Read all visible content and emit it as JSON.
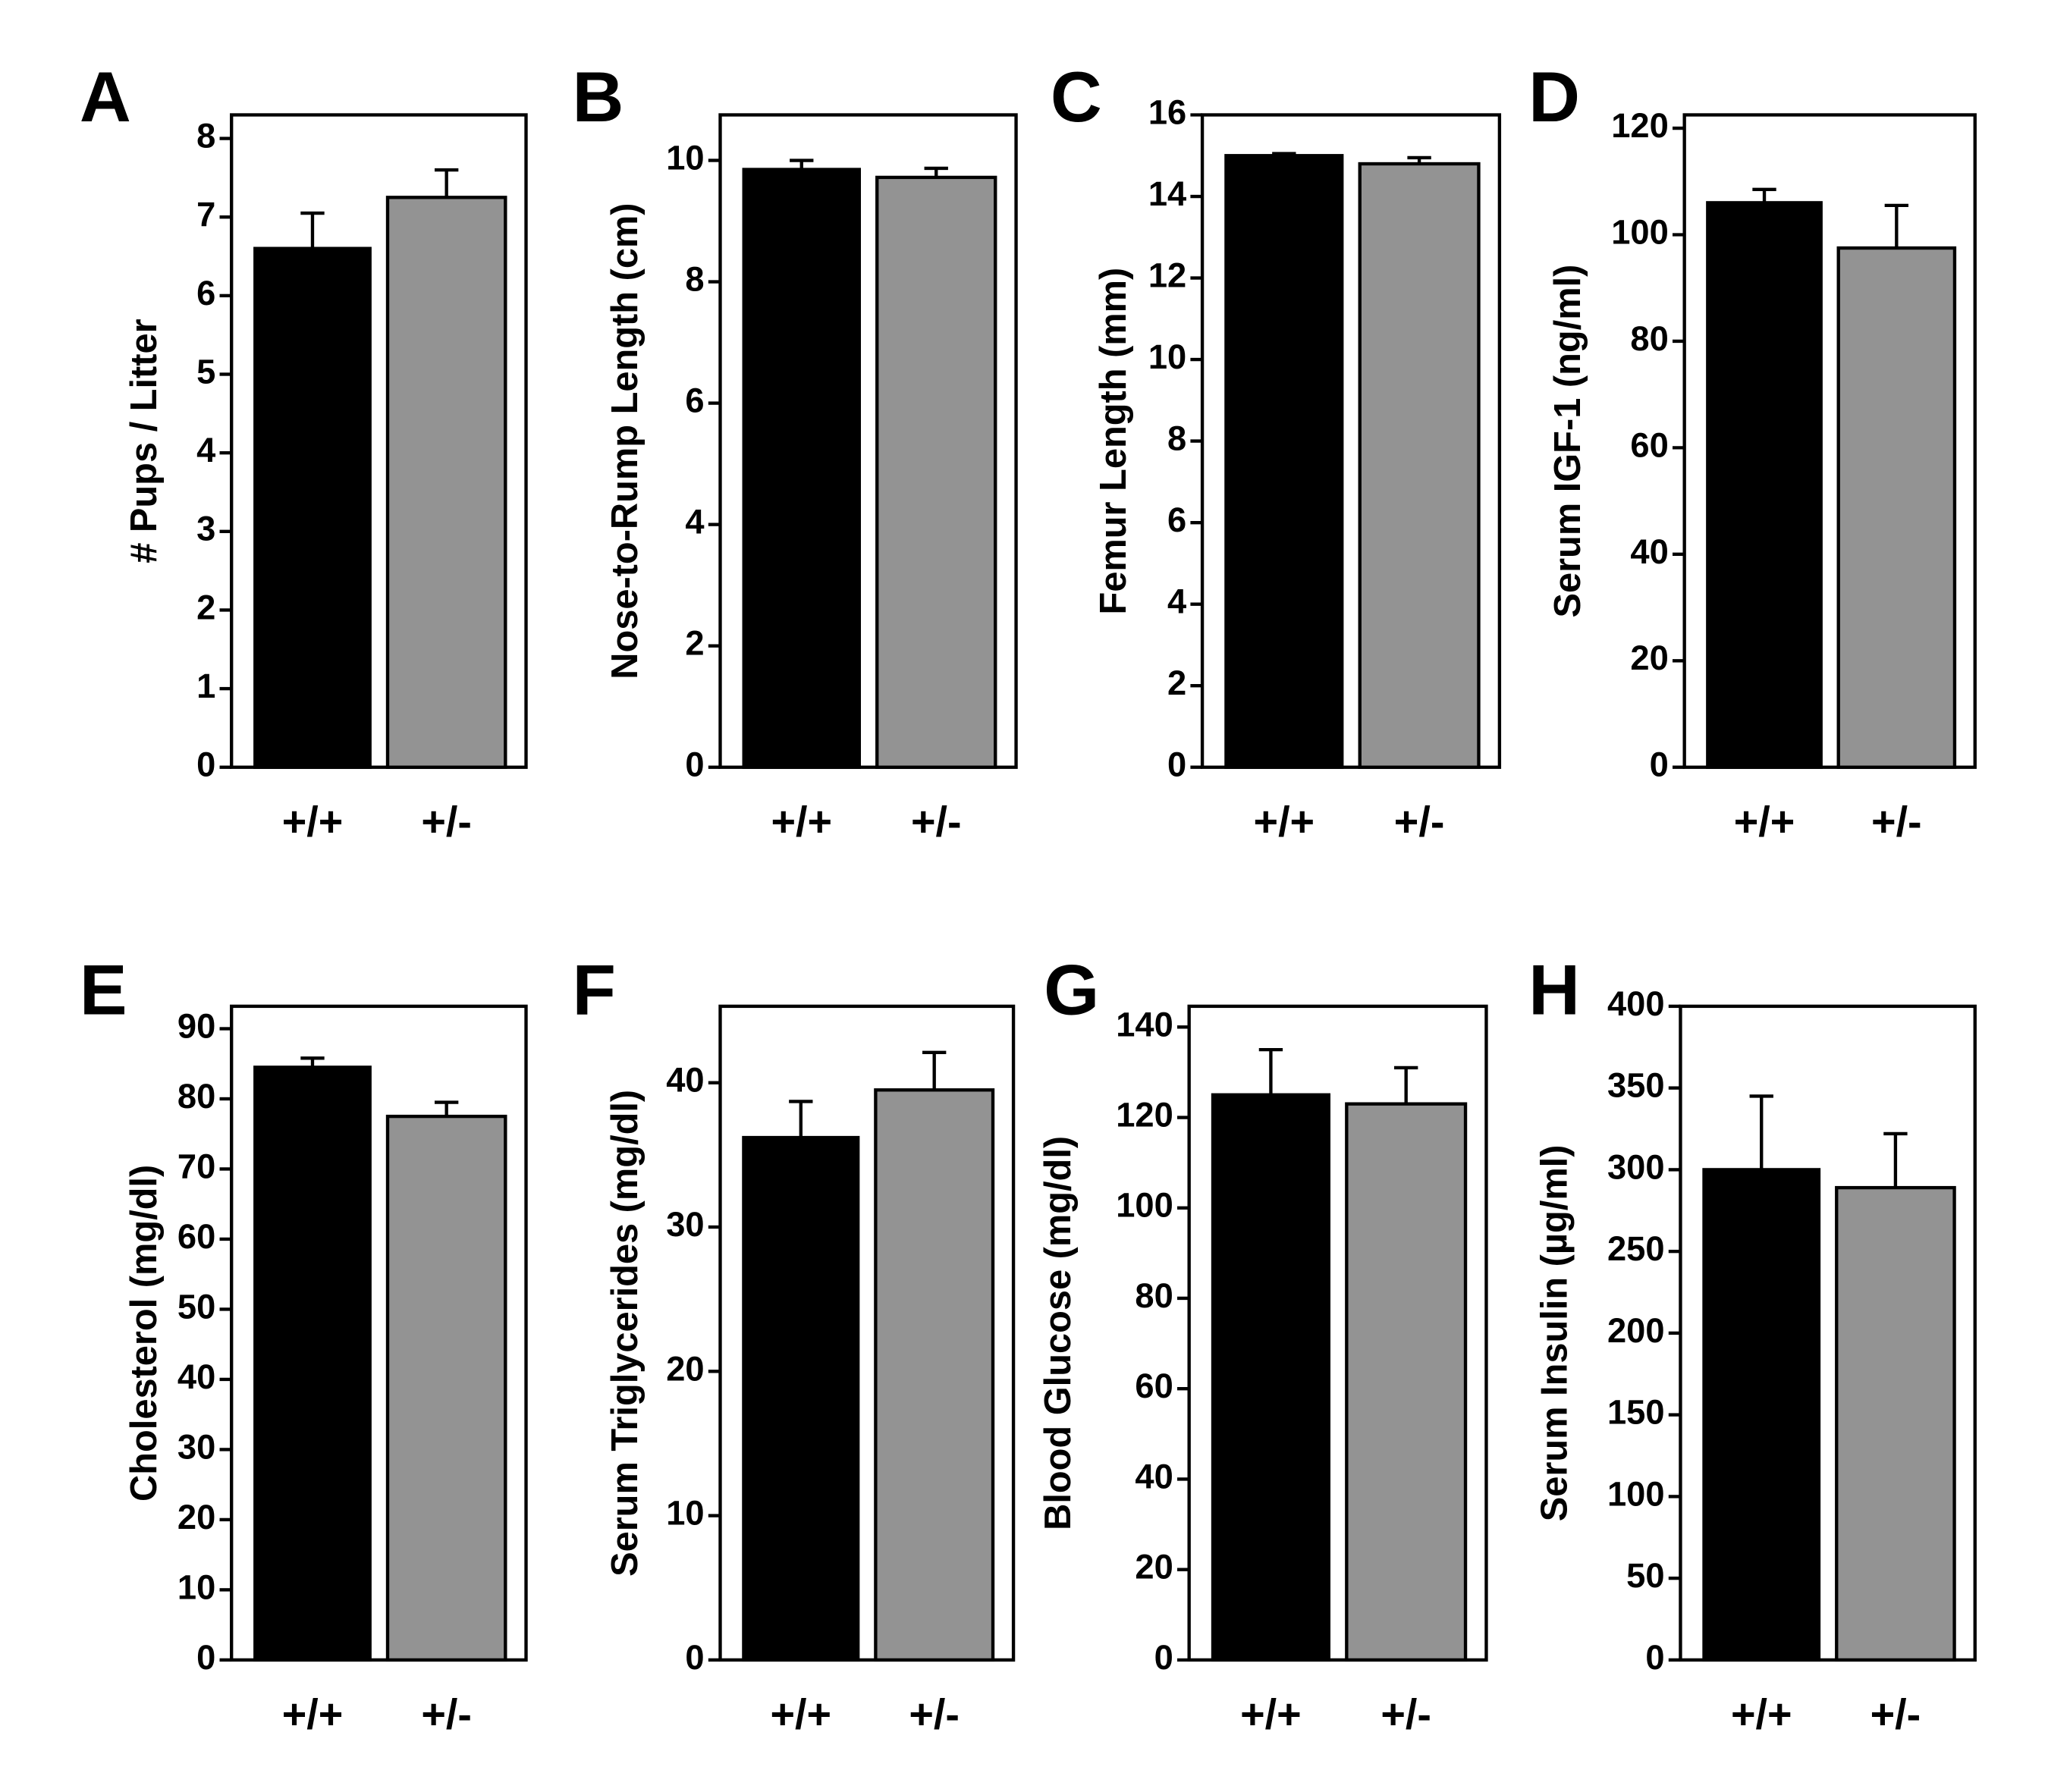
{
  "colors": {
    "wildtype": "#000000",
    "heterozygous": "#939393"
  },
  "chart_data": [
    {
      "type": "bar",
      "panel": "A",
      "ylabel": "# Pups / Litter",
      "categories": [
        "+/+",
        "+/-"
      ],
      "values": [
        6.6,
        7.25
      ],
      "errors": [
        0.45,
        0.35
      ],
      "ylim": [
        0,
        8.3
      ],
      "yticks": [
        0,
        1,
        2,
        3,
        4,
        5,
        6,
        7,
        8
      ]
    },
    {
      "type": "bar",
      "panel": "B",
      "ylabel": "Nose-to-Rump Length (cm)",
      "categories": [
        "+/+",
        "+/-"
      ],
      "values": [
        9.85,
        9.72
      ],
      "errors": [
        0.15,
        0.15
      ],
      "ylim": [
        0,
        10.75
      ],
      "yticks": [
        0,
        2,
        4,
        6,
        8,
        10
      ]
    },
    {
      "type": "bar",
      "panel": "C",
      "ylabel": "Femur Length (mm)",
      "categories": [
        "+/+",
        "+/-"
      ],
      "values": [
        15.0,
        14.8
      ],
      "errors": [
        0.05,
        0.15
      ],
      "ylim": [
        0,
        16
      ],
      "yticks": [
        0,
        2,
        4,
        6,
        8,
        10,
        12,
        14,
        16
      ]
    },
    {
      "type": "bar",
      "panel": "D",
      "ylabel": "Serum IGF-1 (ng/ml)",
      "categories": [
        "+/+",
        "+/-"
      ],
      "values": [
        106,
        97.5
      ],
      "errors": [
        2.5,
        8
      ],
      "ylim": [
        0,
        122.5
      ],
      "yticks": [
        0,
        20,
        40,
        60,
        80,
        100,
        120
      ]
    },
    {
      "type": "bar",
      "panel": "E",
      "ylabel": "Cholesterol (mg/dl)",
      "categories": [
        "+/+",
        "+/-"
      ],
      "values": [
        84.5,
        77.5
      ],
      "errors": [
        1.3,
        2
      ],
      "ylim": [
        0,
        93.2
      ],
      "yticks": [
        0,
        10,
        20,
        30,
        40,
        50,
        60,
        70,
        80,
        90
      ]
    },
    {
      "type": "bar",
      "panel": "F",
      "ylabel": "Serum Triglycerides (mg/dl)",
      "categories": [
        "+/+",
        "+/-"
      ],
      "values": [
        36.2,
        39.5
      ],
      "errors": [
        2.5,
        2.6
      ],
      "ylim": [
        0,
        45.3
      ],
      "yticks": [
        0,
        10,
        20,
        30,
        40
      ]
    },
    {
      "type": "bar",
      "panel": "G",
      "ylabel": "Blood Glucose (mg/dl)",
      "categories": [
        "+/+",
        "+/-"
      ],
      "values": [
        125,
        123
      ],
      "errors": [
        10,
        8
      ],
      "ylim": [
        0,
        144.6
      ],
      "yticks": [
        0,
        20,
        40,
        60,
        80,
        100,
        120,
        140
      ]
    },
    {
      "type": "bar",
      "panel": "H",
      "ylabel": "Serum Insulin (µg/ml)",
      "categories": [
        "+/+",
        "+/-"
      ],
      "values": [
        300,
        289
      ],
      "errors": [
        45,
        33
      ],
      "ylim": [
        0,
        400
      ],
      "yticks": [
        0,
        50,
        100,
        150,
        200,
        250,
        300,
        350,
        400
      ]
    }
  ]
}
